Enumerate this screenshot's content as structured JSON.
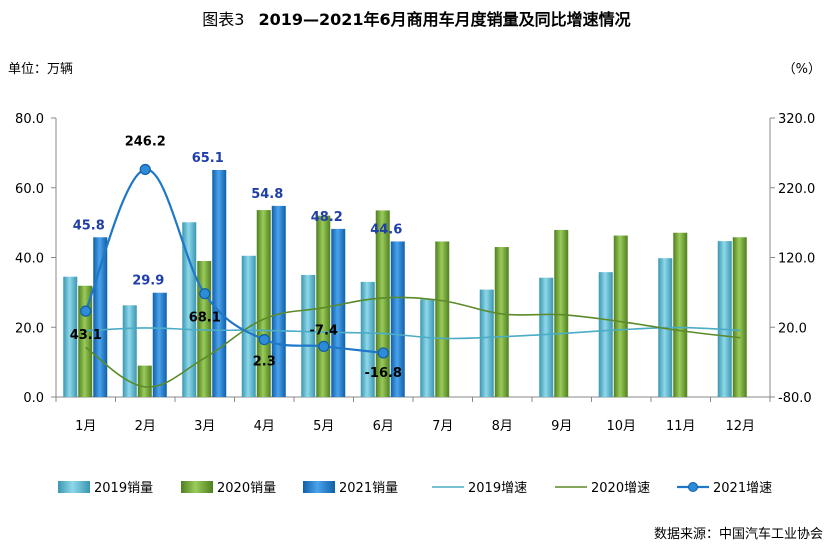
{
  "title": {
    "prefix": "图表3",
    "text": "2019—2021年6月商用车月度销量及同比增速情况"
  },
  "units": {
    "left": "单位：万辆",
    "right": "（%）"
  },
  "source": "数据来源：中国汽车工业协会",
  "chart_data": {
    "type": "bar",
    "categories": [
      "1月",
      "2月",
      "3月",
      "4月",
      "5月",
      "6月",
      "7月",
      "8月",
      "9月",
      "10月",
      "11月",
      "12月"
    ],
    "y_left": {
      "ylim": [
        0,
        80
      ],
      "ticks": [
        "0.0",
        "20.0",
        "40.0",
        "60.0",
        "80.0"
      ]
    },
    "y_right": {
      "ylim": [
        -80,
        320
      ],
      "ticks": [
        "-80.0",
        "20.0",
        "120.0",
        "220.0",
        "320.0"
      ]
    },
    "series": [
      {
        "name": "2019销量",
        "type": "bar",
        "axis": "left",
        "color": "#4BACC6",
        "values": [
          34.5,
          26.3,
          50.1,
          40.5,
          35.0,
          33.0,
          28.0,
          30.8,
          34.2,
          35.8,
          39.8,
          44.7
        ]
      },
      {
        "name": "2020销量",
        "type": "bar",
        "axis": "left",
        "color": "#77A336",
        "values": [
          31.9,
          9.0,
          39.0,
          53.6,
          52.0,
          53.5,
          44.6,
          43.0,
          47.9,
          46.3,
          47.1,
          45.8
        ]
      },
      {
        "name": "2021销量",
        "type": "bar",
        "axis": "left",
        "color": "#1F77C8",
        "values": [
          45.8,
          29.9,
          65.1,
          54.8,
          48.2,
          44.6,
          null,
          null,
          null,
          null,
          null,
          null
        ],
        "labels": [
          "45.8",
          "29.9",
          "65.1",
          "54.8",
          "48.2",
          "44.6"
        ]
      },
      {
        "name": "2019增速",
        "type": "line",
        "axis": "right",
        "color": "#4BACC6",
        "values": [
          15.0,
          19.0,
          16.0,
          15.5,
          13.0,
          11.0,
          4.0,
          6.5,
          11.0,
          16.5,
          19.5,
          15.5
        ]
      },
      {
        "name": "2020增速",
        "type": "line",
        "axis": "right",
        "color": "#5B8A2A",
        "values": [
          -9.0,
          -65.5,
          -24.0,
          32.0,
          48.0,
          62.0,
          58.0,
          39.0,
          38.0,
          28.0,
          15.0,
          5.0
        ]
      },
      {
        "name": "2021增速",
        "type": "line",
        "axis": "right",
        "color": "#1F77C8",
        "markers": true,
        "values": [
          43.1,
          246.2,
          68.1,
          2.3,
          -7.4,
          -16.8,
          null,
          null,
          null,
          null,
          null,
          null
        ],
        "labels": [
          "43.1",
          "246.2",
          "68.1",
          "2.3",
          "-7.4",
          "-16.8"
        ]
      }
    ],
    "legend": {
      "position": "bottom"
    },
    "grid": false
  }
}
